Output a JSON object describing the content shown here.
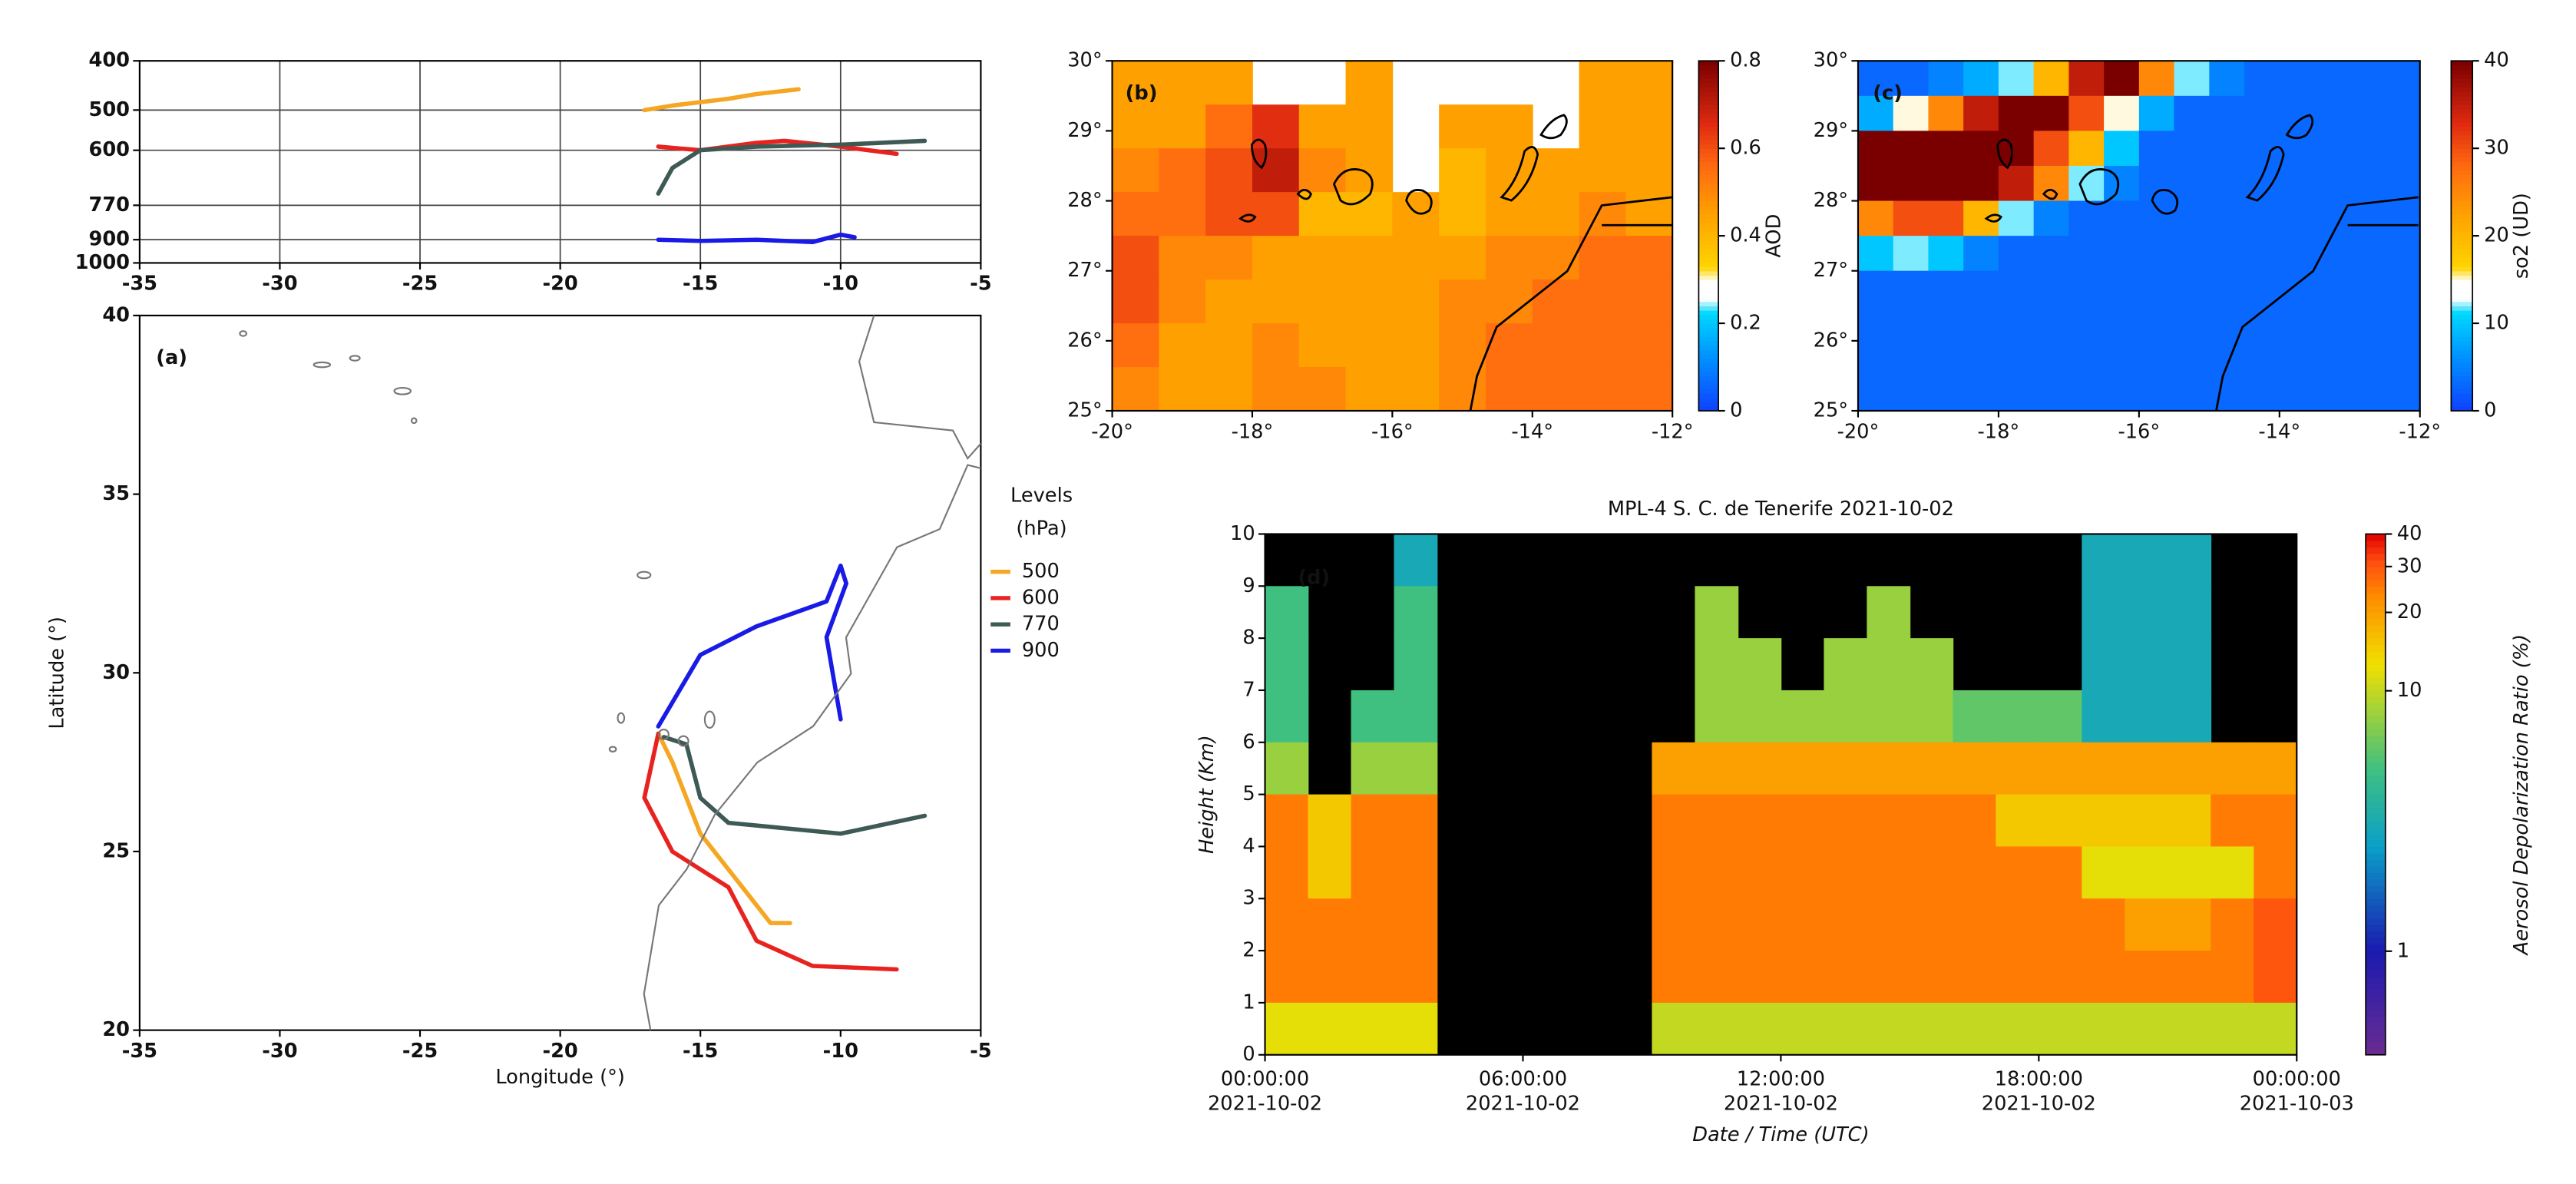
{
  "chart_data": [
    {
      "type": "line",
      "xlim": [
        -35,
        -5
      ],
      "xticks": [
        -35,
        -30,
        -25,
        -20,
        -15,
        -10,
        -5
      ],
      "ylim": [
        400,
        1000
      ],
      "yticks": [
        400,
        500,
        600,
        770,
        900,
        1000
      ],
      "yscale": "log",
      "yinvert": true,
      "grid": true,
      "series": [
        {
          "color": "#f5a623",
          "x": [
            -17,
            -16,
            -14,
            -13,
            -11.5
          ],
          "values": [
            500,
            490,
            475,
            465,
            455
          ]
        },
        {
          "color": "#e8231f",
          "x": [
            -16.5,
            -15,
            -13,
            -12,
            -10,
            -8
          ],
          "values": [
            590,
            600,
            580,
            575,
            590,
            610
          ]
        },
        {
          "color": "#3d5a55",
          "x": [
            -16.5,
            -16,
            -15,
            -13,
            -10,
            -7
          ],
          "values": [
            730,
            650,
            600,
            590,
            585,
            575
          ]
        },
        {
          "color": "#1a1ae6",
          "x": [
            -16.5,
            -15,
            -13,
            -11,
            -10,
            -9.5
          ],
          "values": [
            900,
            905,
            900,
            910,
            880,
            890
          ]
        }
      ]
    },
    {
      "type": "line",
      "panel_label": "(a)",
      "xlabel": "Longitude (°)",
      "ylabel": "Latitude (°)",
      "xlim": [
        -35,
        -5
      ],
      "xticks": [
        -35,
        -30,
        -25,
        -20,
        -15,
        -10,
        -5
      ],
      "ylim": [
        20,
        40
      ],
      "yticks": [
        20,
        25,
        30,
        35,
        40
      ],
      "legend_title": [
        "Levels",
        "(hPa)"
      ],
      "legend": "right",
      "series": [
        {
          "name": "500",
          "color": "#f5a623",
          "x": [
            -16.5,
            -16,
            -15,
            -13.5,
            -12.5,
            -11.8
          ],
          "values": [
            28.3,
            27.5,
            25.5,
            24,
            23,
            23
          ]
        },
        {
          "name": "600",
          "color": "#e8231f",
          "x": [
            -16.5,
            -17,
            -16,
            -14,
            -13,
            -11,
            -8
          ],
          "values": [
            28.3,
            26.5,
            25,
            24,
            22.5,
            21.8,
            21.7
          ]
        },
        {
          "name": "770",
          "color": "#3d5a55",
          "x": [
            -16.3,
            -15.5,
            -15,
            -14,
            -10,
            -7
          ],
          "values": [
            28.2,
            28,
            26.5,
            25.8,
            25.5,
            26
          ]
        },
        {
          "name": "900",
          "color": "#1a1ae6",
          "x": [
            -16.5,
            -15,
            -13,
            -10.5,
            -10,
            -9.8,
            -10.5,
            -10
          ],
          "values": [
            28.5,
            30.5,
            31.3,
            32,
            33,
            32.5,
            31,
            28.7
          ]
        }
      ]
    },
    {
      "type": "heatmap",
      "panel_label": "(b)",
      "xlim": [
        -20,
        -12
      ],
      "xticks": [
        {
          "value": -20,
          "label": "-20°"
        },
        {
          "value": -18,
          "label": "-18°"
        },
        {
          "value": -16,
          "label": "-16°"
        },
        {
          "value": -14,
          "label": "-14°"
        },
        {
          "value": -12,
          "label": "-12°"
        }
      ],
      "ylim": [
        25,
        30
      ],
      "yticks": [
        {
          "value": 25,
          "label": "25°"
        },
        {
          "value": 26,
          "label": "26°"
        },
        {
          "value": 27,
          "label": "27°"
        },
        {
          "value": 28,
          "label": "28°"
        },
        {
          "value": 29,
          "label": "29°"
        },
        {
          "value": 30,
          "label": "30°"
        }
      ],
      "clim": [
        0,
        0.8
      ],
      "cticks": [
        0,
        0.2,
        0.4,
        0.6,
        0.8
      ],
      "clabel": "AOD",
      "values": [
        [
          0.45,
          0.45,
          0.45,
          null,
          null,
          0.45,
          null,
          null,
          null,
          null,
          0.45,
          0.45
        ],
        [
          0.45,
          0.45,
          0.55,
          0.65,
          0.45,
          0.45,
          null,
          0.45,
          0.45,
          null,
          0.45,
          0.45
        ],
        [
          0.5,
          0.55,
          0.6,
          0.7,
          0.5,
          0.45,
          null,
          0.4,
          0.45,
          0.45,
          0.45,
          0.45
        ],
        [
          0.55,
          0.55,
          0.6,
          0.6,
          0.4,
          0.4,
          0.45,
          0.4,
          0.45,
          0.45,
          0.5,
          0.45
        ],
        [
          0.6,
          0.5,
          0.5,
          0.45,
          0.45,
          0.45,
          0.45,
          0.45,
          0.5,
          0.5,
          0.55,
          0.55
        ],
        [
          0.6,
          0.5,
          0.45,
          0.45,
          0.45,
          0.45,
          0.45,
          0.5,
          0.5,
          0.55,
          0.55,
          0.55
        ],
        [
          0.55,
          0.45,
          0.45,
          0.5,
          0.45,
          0.45,
          0.45,
          0.5,
          0.55,
          0.55,
          0.55,
          0.55
        ],
        [
          0.5,
          0.45,
          0.45,
          0.5,
          0.5,
          0.45,
          0.45,
          0.5,
          0.55,
          0.55,
          0.55,
          0.55
        ]
      ]
    },
    {
      "type": "heatmap",
      "panel_label": "(c)",
      "xlim": [
        -20,
        -12
      ],
      "xticks": [
        {
          "value": -20,
          "label": "-20°"
        },
        {
          "value": -18,
          "label": "-18°"
        },
        {
          "value": -16,
          "label": "-16°"
        },
        {
          "value": -14,
          "label": "-14°"
        },
        {
          "value": -12,
          "label": "-12°"
        }
      ],
      "ylim": [
        25,
        30
      ],
      "yticks": [
        {
          "value": 25,
          "label": "25°"
        },
        {
          "value": 26,
          "label": "26°"
        },
        {
          "value": 27,
          "label": "27°"
        },
        {
          "value": 28,
          "label": "28°"
        },
        {
          "value": 29,
          "label": "29°"
        },
        {
          "value": 30,
          "label": "30°"
        }
      ],
      "clim": [
        0,
        40
      ],
      "cticks": [
        0,
        10,
        20,
        30,
        40
      ],
      "clabel": "so2 (UD)",
      "values": [
        [
          3,
          3,
          5,
          8,
          12,
          20,
          35,
          40,
          25,
          12,
          5,
          3,
          3,
          3,
          3,
          3
        ],
        [
          8,
          15,
          25,
          35,
          40,
          40,
          30,
          15,
          8,
          3,
          3,
          3,
          3,
          3,
          3,
          3
        ],
        [
          40,
          40,
          40,
          40,
          40,
          30,
          20,
          10,
          3,
          3,
          3,
          3,
          3,
          3,
          3,
          3
        ],
        [
          40,
          40,
          40,
          40,
          35,
          25,
          12,
          5,
          3,
          3,
          3,
          3,
          3,
          3,
          3,
          3
        ],
        [
          25,
          30,
          30,
          20,
          12,
          5,
          3,
          3,
          3,
          3,
          3,
          3,
          3,
          3,
          3,
          3
        ],
        [
          10,
          12,
          10,
          5,
          3,
          3,
          3,
          3,
          3,
          3,
          3,
          3,
          3,
          3,
          3,
          3
        ],
        [
          3,
          3,
          3,
          3,
          3,
          3,
          3,
          3,
          3,
          3,
          3,
          3,
          3,
          3,
          3,
          3
        ],
        [
          3,
          3,
          3,
          3,
          3,
          3,
          3,
          3,
          3,
          3,
          3,
          3,
          3,
          3,
          3,
          3
        ],
        [
          3,
          3,
          3,
          3,
          3,
          3,
          3,
          3,
          3,
          3,
          3,
          3,
          3,
          3,
          3,
          3
        ],
        [
          3,
          3,
          3,
          3,
          3,
          3,
          3,
          3,
          3,
          3,
          3,
          3,
          3,
          3,
          3,
          3
        ]
      ]
    },
    {
      "type": "heatmap",
      "panel_label": "(d)",
      "title": "MPL-4 S. C. de Tenerife 2021-10-02",
      "xlabel": "Date / Time (UTC)",
      "ylabel": "Height (Km)",
      "clabel": "Aerosol Depolarization Ratio (%)",
      "xlim": [
        "2021-10-02T00:00:00",
        "2021-10-03T00:00:00"
      ],
      "xticks": [
        {
          "value": "2021-10-02T00:00:00",
          "label": [
            "00:00:00",
            "2021-10-02"
          ]
        },
        {
          "value": "2021-10-02T06:00:00",
          "label": [
            "06:00:00",
            "2021-10-02"
          ]
        },
        {
          "value": "2021-10-02T12:00:00",
          "label": [
            "12:00:00",
            "2021-10-02"
          ]
        },
        {
          "value": "2021-10-02T18:00:00",
          "label": [
            "18:00:00",
            "2021-10-02"
          ]
        },
        {
          "value": "2021-10-03T00:00:00",
          "label": [
            "00:00:00",
            "2021-10-03"
          ]
        }
      ],
      "ylim": [
        0,
        10
      ],
      "yticks": [
        0,
        1,
        2,
        3,
        4,
        5,
        6,
        7,
        8,
        9,
        10
      ],
      "clim": [
        0.4,
        40
      ],
      "cscale": "log",
      "cticks": [
        1,
        10,
        20,
        30,
        40
      ],
      "values": [
        [
          null,
          null,
          null,
          3,
          null,
          null,
          null,
          null,
          null,
          null,
          null,
          null,
          null,
          null,
          null,
          null,
          null,
          null,
          null,
          3,
          3,
          3,
          null,
          null
        ],
        [
          5,
          null,
          null,
          5,
          null,
          null,
          null,
          null,
          null,
          null,
          8,
          null,
          null,
          null,
          8,
          null,
          null,
          null,
          null,
          3,
          3,
          3,
          null,
          null
        ],
        [
          5,
          null,
          null,
          5,
          null,
          null,
          null,
          null,
          null,
          null,
          8,
          8,
          null,
          8,
          8,
          8,
          null,
          null,
          null,
          3,
          3,
          3,
          null,
          null
        ],
        [
          5,
          null,
          5,
          5,
          null,
          null,
          null,
          null,
          null,
          null,
          8,
          8,
          8,
          8,
          8,
          8,
          6,
          6,
          6,
          3,
          3,
          3,
          null,
          null
        ],
        [
          8,
          null,
          8,
          8,
          null,
          null,
          null,
          null,
          null,
          20,
          20,
          20,
          20,
          20,
          20,
          20,
          20,
          20,
          20,
          20,
          20,
          20,
          20,
          20
        ],
        [
          25,
          15,
          25,
          25,
          null,
          null,
          null,
          null,
          null,
          25,
          25,
          25,
          25,
          25,
          25,
          25,
          25,
          15,
          15,
          15,
          15,
          15,
          25,
          25
        ],
        [
          25,
          15,
          25,
          25,
          null,
          null,
          null,
          null,
          null,
          25,
          25,
          25,
          25,
          25,
          25,
          25,
          25,
          25,
          25,
          12,
          12,
          12,
          12,
          25
        ],
        [
          25,
          25,
          25,
          25,
          null,
          null,
          null,
          null,
          null,
          25,
          25,
          25,
          25,
          25,
          25,
          25,
          25,
          25,
          25,
          25,
          20,
          20,
          25,
          30
        ],
        [
          25,
          25,
          25,
          25,
          null,
          null,
          null,
          null,
          null,
          25,
          25,
          25,
          25,
          25,
          25,
          25,
          25,
          25,
          25,
          25,
          25,
          25,
          25,
          30
        ],
        [
          12,
          12,
          12,
          12,
          null,
          null,
          null,
          null,
          null,
          10,
          10,
          10,
          10,
          10,
          10,
          10,
          10,
          10,
          10,
          10,
          10,
          10,
          10,
          10
        ]
      ]
    }
  ]
}
